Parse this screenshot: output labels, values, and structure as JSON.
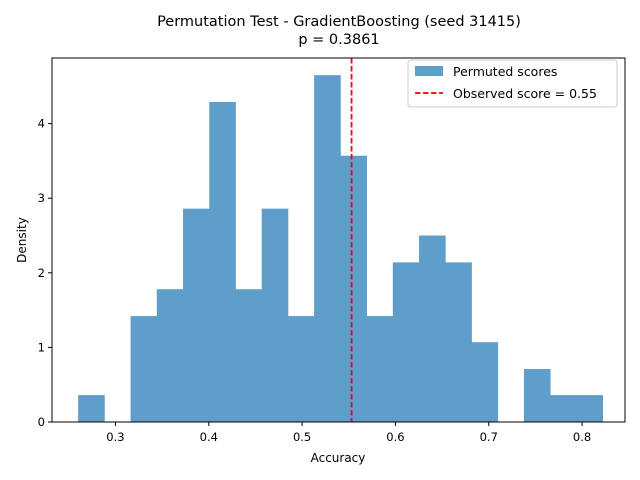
{
  "chart_data": {
    "type": "bar",
    "title": "Permutation Test - GradientBoosting (seed 31415)",
    "subtitle": "p = 0.3861",
    "xlabel": "Accuracy",
    "ylabel": "Density",
    "xlim": [
      0.232,
      0.846
    ],
    "ylim": [
      0,
      4.88
    ],
    "xticks": [
      "0.3",
      "0.4",
      "0.5",
      "0.6",
      "0.7",
      "0.8"
    ],
    "xtick_values": [
      0.3,
      0.4,
      0.5,
      0.6,
      0.7,
      0.8
    ],
    "yticks": [
      "0",
      "1",
      "2",
      "3",
      "4"
    ],
    "ytick_values": [
      0,
      1,
      2,
      3,
      4
    ],
    "bin_start": 0.26,
    "bin_width": 0.0281,
    "series": [
      {
        "name": "Permuted scores",
        "color": "#5f9ecb",
        "values": [
          0.36,
          0,
          1.42,
          1.78,
          2.86,
          4.29,
          1.78,
          2.86,
          1.42,
          4.65,
          3.57,
          1.42,
          2.14,
          2.5,
          2.14,
          1.07,
          0,
          0.71,
          0.36,
          0.36
        ]
      }
    ],
    "observed": {
      "name": "Observed score = 0.55",
      "value": 0.553,
      "color": "#ff0000"
    },
    "legend_position": "top-right",
    "grid": false
  }
}
